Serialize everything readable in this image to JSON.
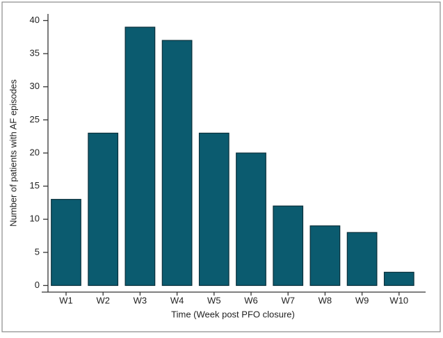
{
  "chart_data": {
    "type": "bar",
    "x_label": "Time (Week post PFO closure)",
    "y_label": "Number of patients with AF episodes",
    "categories": [
      "W1",
      "W2",
      "W3",
      "W4",
      "W5",
      "W6",
      "W7",
      "W8",
      "W9",
      "W10"
    ],
    "values": [
      13,
      23,
      39,
      37,
      23,
      20,
      12,
      9,
      8,
      2
    ],
    "color": "#0b5b6f",
    "ylim": [
      -1,
      41
    ],
    "yticks": [
      0,
      5,
      10,
      15,
      20,
      25,
      30,
      35,
      40
    ],
    "grid": false
  }
}
